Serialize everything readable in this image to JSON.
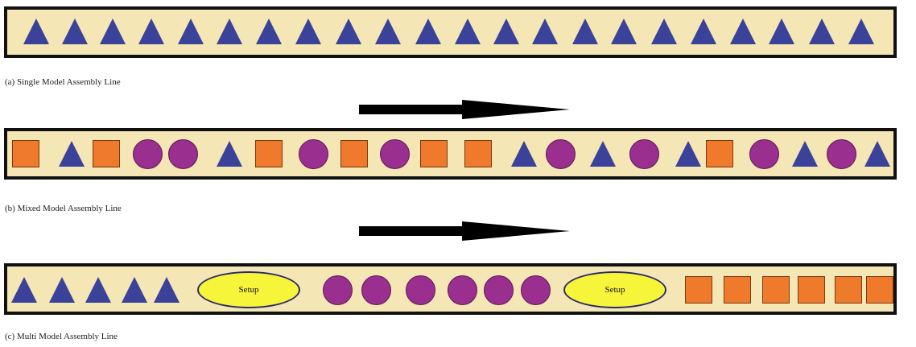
{
  "colors": {
    "line_background": "#f5e6b5",
    "line_border": "#111111",
    "triangle": "#3a429a",
    "square": "#f07a2c",
    "circle": "#9a2f90",
    "setup": "#f7f53a",
    "arrow": "#000000"
  },
  "lines": [
    {
      "id": "a",
      "caption": "(a) Single Model Assembly Line",
      "items": [
        {
          "shape": "triangle"
        },
        {
          "shape": "triangle"
        },
        {
          "shape": "triangle"
        },
        {
          "shape": "triangle"
        },
        {
          "shape": "triangle"
        },
        {
          "shape": "triangle"
        },
        {
          "shape": "triangle"
        },
        {
          "shape": "triangle"
        },
        {
          "shape": "triangle"
        },
        {
          "shape": "triangle"
        },
        {
          "shape": "triangle"
        },
        {
          "shape": "triangle"
        },
        {
          "shape": "triangle"
        },
        {
          "shape": "triangle"
        },
        {
          "shape": "triangle"
        },
        {
          "shape": "triangle"
        },
        {
          "shape": "triangle"
        },
        {
          "shape": "triangle"
        },
        {
          "shape": "triangle"
        },
        {
          "shape": "triangle"
        },
        {
          "shape": "triangle"
        },
        {
          "shape": "triangle"
        }
      ]
    },
    {
      "id": "b",
      "caption": "(b) Mixed Model Assembly Line",
      "items": [
        {
          "shape": "square"
        },
        {
          "shape": "triangle"
        },
        {
          "shape": "square"
        },
        {
          "shape": "circle"
        },
        {
          "shape": "circle"
        },
        {
          "shape": "triangle"
        },
        {
          "shape": "square"
        },
        {
          "shape": "circle"
        },
        {
          "shape": "square"
        },
        {
          "shape": "circle"
        },
        {
          "shape": "square"
        },
        {
          "shape": "square"
        },
        {
          "shape": "triangle"
        },
        {
          "shape": "circle"
        },
        {
          "shape": "triangle"
        },
        {
          "shape": "circle"
        },
        {
          "shape": "triangle"
        },
        {
          "shape": "square"
        },
        {
          "shape": "circle"
        },
        {
          "shape": "triangle"
        },
        {
          "shape": "circle"
        },
        {
          "shape": "triangle"
        }
      ]
    },
    {
      "id": "c",
      "caption": "(c) Multi Model Assembly Line",
      "items": [
        {
          "shape": "triangle"
        },
        {
          "shape": "triangle"
        },
        {
          "shape": "triangle"
        },
        {
          "shape": "triangle"
        },
        {
          "shape": "triangle"
        },
        {
          "shape": "setup",
          "label": "Setup"
        },
        {
          "shape": "circle"
        },
        {
          "shape": "circle"
        },
        {
          "shape": "circle"
        },
        {
          "shape": "circle"
        },
        {
          "shape": "circle"
        },
        {
          "shape": "circle"
        },
        {
          "shape": "setup",
          "label": "Setup"
        },
        {
          "shape": "square"
        },
        {
          "shape": "square"
        },
        {
          "shape": "square"
        },
        {
          "shape": "square"
        },
        {
          "shape": "square"
        },
        {
          "shape": "square"
        }
      ]
    }
  ],
  "arrows": [
    {
      "direction": "right"
    },
    {
      "direction": "right"
    }
  ]
}
